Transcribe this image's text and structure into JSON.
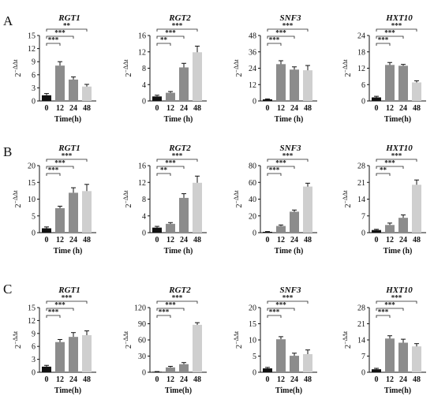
{
  "figure": {
    "row_labels": [
      "A",
      "B",
      "C"
    ],
    "y_axis_label_base": "2",
    "y_axis_label_exp": "−ΔΔt",
    "bar_colors": [
      "#111111",
      "#8c8c8c",
      "#8c8c8c",
      "#cfcfcf"
    ]
  },
  "chart_data": [
    {
      "type": "bar",
      "row": "A",
      "title": "RGT1",
      "xlabel": "Time(h)",
      "categories": [
        "0",
        "12",
        "24",
        "48"
      ],
      "values": [
        1.3,
        8.1,
        4.9,
        3.3
      ],
      "errors": [
        0.4,
        0.9,
        0.6,
        0.5
      ],
      "ylim": [
        0,
        15
      ],
      "yticks": [
        0,
        3,
        6,
        9,
        12,
        15
      ],
      "sig": [
        "***",
        "***",
        "**"
      ]
    },
    {
      "type": "bar",
      "row": "A",
      "title": "RGT2",
      "xlabel": "Time (h)",
      "categories": [
        "0",
        "12",
        "24",
        "48"
      ],
      "values": [
        1.1,
        2.0,
        8.2,
        11.9
      ],
      "errors": [
        0.3,
        0.3,
        1.0,
        1.5
      ],
      "ylim": [
        0,
        16
      ],
      "yticks": [
        0,
        4,
        8,
        12,
        16
      ],
      "sig": [
        "**",
        "***",
        "***"
      ]
    },
    {
      "type": "bar",
      "row": "A",
      "title": "SNF3",
      "xlabel": "Time (h)",
      "categories": [
        "0",
        "12",
        "24",
        "48"
      ],
      "values": [
        1.2,
        27.0,
        23.0,
        22.5
      ],
      "errors": [
        0.3,
        2.5,
        2.0,
        3.5
      ],
      "ylim": [
        0,
        48
      ],
      "yticks": [
        0,
        12,
        24,
        36,
        48
      ],
      "sig": [
        "***",
        "***",
        "***"
      ]
    },
    {
      "type": "bar",
      "row": "A",
      "title": "HXT10",
      "xlabel": "Time(h)",
      "categories": [
        "0",
        "12",
        "24",
        "48"
      ],
      "values": [
        1.3,
        13.2,
        12.9,
        6.8
      ],
      "errors": [
        0.4,
        0.9,
        0.5,
        0.6
      ],
      "ylim": [
        0,
        24
      ],
      "yticks": [
        0,
        6,
        12,
        18,
        24
      ],
      "sig": [
        "***",
        "***",
        "***"
      ]
    },
    {
      "type": "bar",
      "row": "B",
      "title": "RGT1",
      "xlabel": "Time (h)",
      "categories": [
        "0",
        "12",
        "24",
        "48"
      ],
      "values": [
        1.3,
        7.3,
        11.9,
        12.4
      ],
      "errors": [
        0.4,
        0.6,
        1.5,
        2.0
      ],
      "ylim": [
        0,
        20
      ],
      "yticks": [
        0,
        5,
        10,
        15,
        20
      ],
      "sig": [
        "***",
        "***",
        "***"
      ]
    },
    {
      "type": "bar",
      "row": "B",
      "title": "RGT2",
      "xlabel": "Time (h)",
      "categories": [
        "0",
        "12",
        "24",
        "48"
      ],
      "values": [
        1.2,
        2.1,
        8.3,
        11.9
      ],
      "errors": [
        0.3,
        0.3,
        1.0,
        1.6
      ],
      "ylim": [
        0,
        16
      ],
      "yticks": [
        0,
        4,
        8,
        12,
        16
      ],
      "sig": [
        "**",
        "***",
        "***"
      ]
    },
    {
      "type": "bar",
      "row": "B",
      "title": "SNF3",
      "xlabel": "Time (h)",
      "categories": [
        "0",
        "12",
        "24",
        "48"
      ],
      "values": [
        1.0,
        8.0,
        25.0,
        55.0
      ],
      "errors": [
        0.3,
        1.2,
        2.0,
        4.0
      ],
      "ylim": [
        0,
        80
      ],
      "yticks": [
        0,
        20,
        40,
        60,
        80
      ],
      "sig": [
        "***",
        "***",
        "***"
      ]
    },
    {
      "type": "bar",
      "row": "B",
      "title": "HXT10",
      "xlabel": "Time (h)",
      "categories": [
        "0",
        "12",
        "24",
        "48"
      ],
      "values": [
        1.1,
        3.2,
        6.2,
        20.0
      ],
      "errors": [
        0.3,
        0.8,
        1.2,
        2.0
      ],
      "ylim": [
        0,
        28
      ],
      "yticks": [
        0,
        7,
        14,
        21,
        28
      ],
      "sig": [
        "**",
        "***",
        "***"
      ]
    },
    {
      "type": "bar",
      "row": "C",
      "title": "RGT1",
      "xlabel": "Time(h)",
      "categories": [
        "0",
        "12",
        "24",
        "48"
      ],
      "values": [
        1.3,
        7.0,
        8.2,
        8.6
      ],
      "errors": [
        0.3,
        0.6,
        1.0,
        1.0
      ],
      "ylim": [
        0,
        15
      ],
      "yticks": [
        0,
        3,
        6,
        9,
        12,
        15
      ],
      "sig": [
        "***",
        "***",
        "***"
      ]
    },
    {
      "type": "bar",
      "row": "C",
      "title": "RGT2",
      "xlabel": "Time(h)",
      "categories": [
        "0",
        "12",
        "24",
        "48"
      ],
      "values": [
        1.0,
        9.0,
        15.0,
        88.0
      ],
      "errors": [
        0.3,
        2.0,
        3.0,
        4.0
      ],
      "ylim": [
        0,
        120
      ],
      "yticks": [
        0,
        30,
        60,
        90,
        120
      ],
      "sig": [
        "***",
        "***",
        "***"
      ]
    },
    {
      "type": "bar",
      "row": "C",
      "title": "SNF3",
      "xlabel": "Time(h)",
      "categories": [
        "0",
        "12",
        "24",
        "48"
      ],
      "values": [
        1.2,
        10.2,
        5.1,
        5.6
      ],
      "errors": [
        0.3,
        0.8,
        0.8,
        1.3
      ],
      "ylim": [
        0,
        20
      ],
      "yticks": [
        0,
        5,
        10,
        15,
        20
      ],
      "sig": [
        "***",
        "***",
        "***"
      ]
    },
    {
      "type": "bar",
      "row": "C",
      "title": "HXT10",
      "xlabel": "Time(h)",
      "categories": [
        "0",
        "12",
        "24",
        "48"
      ],
      "values": [
        1.3,
        14.6,
        12.8,
        11.2
      ],
      "errors": [
        0.4,
        1.2,
        1.5,
        1.2
      ],
      "ylim": [
        0,
        28
      ],
      "yticks": [
        0,
        7,
        14,
        21,
        28
      ],
      "sig": [
        "***",
        "***",
        "***"
      ]
    }
  ]
}
